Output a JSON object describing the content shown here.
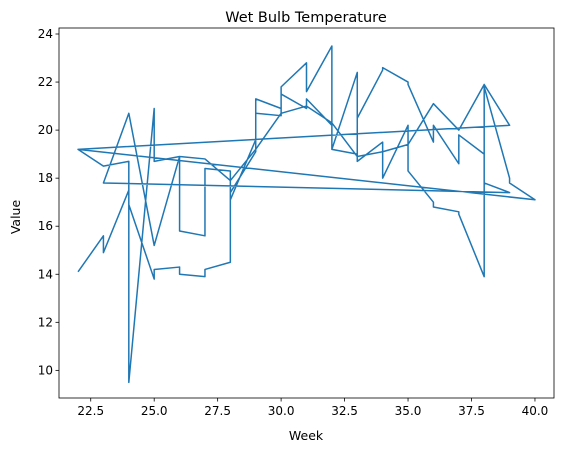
{
  "chart_data": {
    "type": "line",
    "title": "Wet Bulb Temperature",
    "xlabel": "Week",
    "ylabel": "Value",
    "xlim": [
      21.25,
      40.75
    ],
    "ylim": [
      8.85,
      24.25
    ],
    "xticks": [
      22.5,
      25.0,
      27.5,
      30.0,
      32.5,
      35.0,
      37.5,
      40.0
    ],
    "xtick_labels": [
      "22.5",
      "25.0",
      "27.5",
      "30.0",
      "32.5",
      "35.0",
      "37.5",
      "40.0"
    ],
    "yticks": [
      10,
      12,
      14,
      16,
      18,
      20,
      22,
      24
    ],
    "ytick_labels": [
      "10",
      "12",
      "14",
      "16",
      "18",
      "20",
      "22",
      "24"
    ],
    "grid": false,
    "color": "#1f77b4",
    "series": [
      {
        "x": [
          22,
          23,
          23,
          24,
          24,
          25,
          25,
          26,
          26,
          27,
          27,
          28,
          28,
          29,
          29,
          30,
          30,
          31,
          31,
          32,
          32,
          33,
          33,
          34,
          34,
          35,
          35,
          36,
          36,
          37,
          37,
          38,
          38,
          39,
          39,
          40,
          22,
          23,
          24,
          24,
          25,
          25,
          26,
          26,
          27,
          27,
          28,
          28,
          29,
          29,
          30,
          30,
          31,
          31,
          32,
          32,
          33,
          33,
          34,
          34,
          35,
          35,
          36,
          36,
          37,
          37,
          38,
          38,
          39,
          23,
          24,
          25,
          26,
          27,
          28,
          29,
          30,
          31,
          32,
          33,
          34,
          35,
          36,
          37,
          38,
          39,
          22
        ],
        "y": [
          14.1,
          15.6,
          14.9,
          17.5,
          16.9,
          13.8,
          14.2,
          14.3,
          14.0,
          13.9,
          14.2,
          14.5,
          17.4,
          19.1,
          21.3,
          20.9,
          21.5,
          20.9,
          21.3,
          20.2,
          19.2,
          22.4,
          18.7,
          19.5,
          18.0,
          20.2,
          18.3,
          17.0,
          16.8,
          16.6,
          16.5,
          13.9,
          21.8,
          18.0,
          17.8,
          17.1,
          19.2,
          18.5,
          18.7,
          9.5,
          20.9,
          18.7,
          18.9,
          15.8,
          15.6,
          18.4,
          18.3,
          17.1,
          19.6,
          20.7,
          20.6,
          21.8,
          22.8,
          21.6,
          23.5,
          19.2,
          19.0,
          20.5,
          22.5,
          22.6,
          22.0,
          21.9,
          19.5,
          20.2,
          18.6,
          19.8,
          19.0,
          17.8,
          17.4,
          17.8,
          20.7,
          15.2,
          18.9,
          18.8,
          17.9,
          19.2,
          20.7,
          21.0,
          20.3,
          18.9,
          19.1,
          19.4,
          21.1,
          20.0,
          21.9,
          20.2,
          19.2
        ]
      }
    ]
  }
}
